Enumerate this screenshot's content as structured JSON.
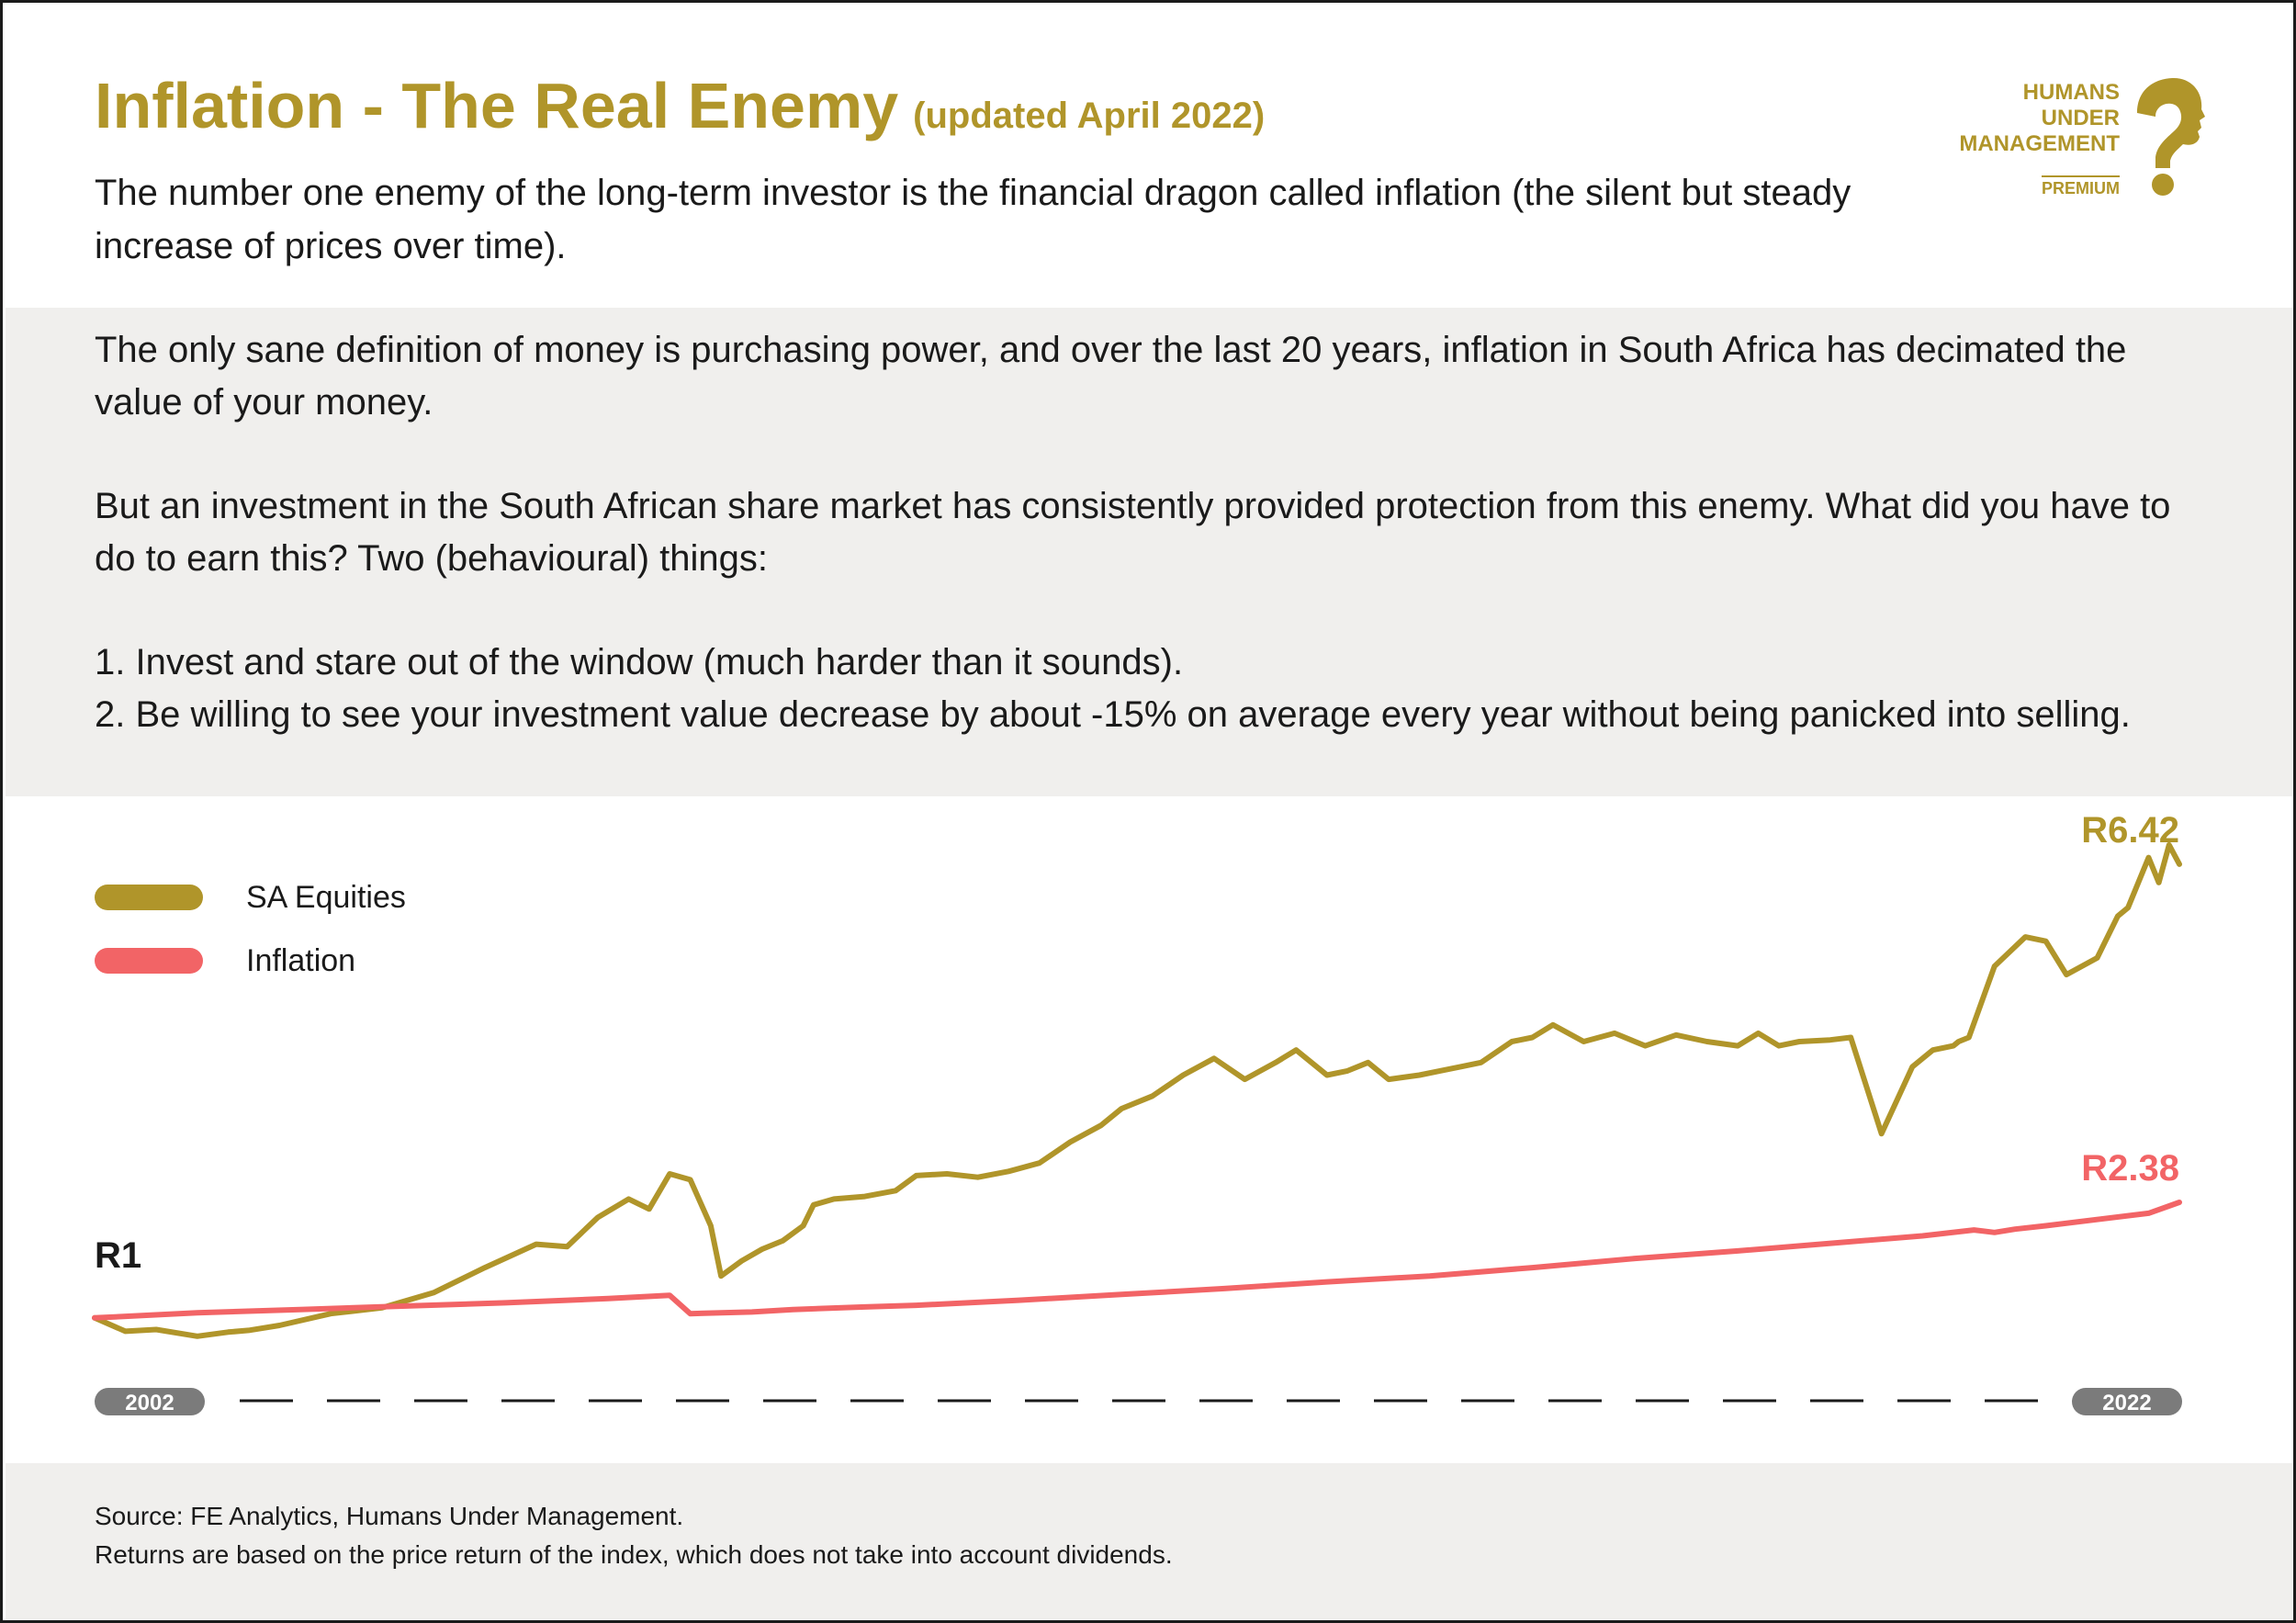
{
  "header": {
    "title": "Inflation - The Real Enemy",
    "subtitle": "(updated April 2022)",
    "intro": "The number one enemy of the long-term investor is the financial dragon called inflation (the silent but steady increase of prices over time)."
  },
  "logo": {
    "line1": "HUMANS",
    "line2": "UNDER",
    "line3": "MANAGEMENT",
    "badge": "PREMIUM",
    "icon": "question-head-icon"
  },
  "body": {
    "p1": "The only sane definition of money is purchasing power, and over the last 20 years, inflation in South Africa has decimated the value of your money.",
    "p2": "But an investment in the South African share market has consistently provided protection from this enemy. What did you have to do to earn this? Two (behavioural) things:",
    "item1": "1. Invest and stare out of the window (much harder than it sounds).",
    "item2": "2. Be willing to see your investment value decrease by about -15% on average every year without being panicked into selling."
  },
  "chart_data": {
    "type": "line",
    "x_start_label": "2002",
    "x_end_label": "2022",
    "xlim": [
      2002.0,
      2022.3
    ],
    "ylim": [
      0.8,
      7.0
    ],
    "start_label": "R1",
    "series": [
      {
        "name": "SA Equities",
        "color": "#b0952a",
        "end_label": "R6.42",
        "x": [
          2002.0,
          2002.3,
          2002.6,
          2003.0,
          2003.3,
          2003.5,
          2003.8,
          2004.3,
          2004.8,
          2005.3,
          2005.8,
          2006.3,
          2006.6,
          2006.9,
          2007.2,
          2007.4,
          2007.6,
          2007.8,
          2008.0,
          2008.1,
          2008.3,
          2008.5,
          2008.7,
          2008.9,
          2009.0,
          2009.2,
          2009.5,
          2009.8,
          2010.0,
          2010.3,
          2010.6,
          2010.9,
          2011.2,
          2011.5,
          2011.8,
          2012.0,
          2012.3,
          2012.6,
          2012.9,
          2013.2,
          2013.5,
          2013.7,
          2014.0,
          2014.2,
          2014.4,
          2014.6,
          2014.9,
          2015.1,
          2015.3,
          2015.5,
          2015.8,
          2016.0,
          2016.2,
          2016.5,
          2016.8,
          2017.1,
          2017.4,
          2017.7,
          2018.0,
          2018.2,
          2018.4,
          2018.6,
          2018.9,
          2019.1,
          2019.4,
          2019.7,
          2019.9,
          2020.1,
          2020.15,
          2020.25,
          2020.5,
          2020.8,
          2021.0,
          2021.2,
          2021.5,
          2021.7,
          2021.8,
          2022.0,
          2022.1,
          2022.2,
          2022.3
        ],
        "values": [
          1.0,
          0.84,
          0.86,
          0.78,
          0.83,
          0.85,
          0.91,
          1.05,
          1.12,
          1.3,
          1.6,
          1.88,
          1.85,
          2.2,
          2.42,
          2.3,
          2.72,
          2.65,
          2.1,
          1.5,
          1.68,
          1.82,
          1.92,
          2.1,
          2.35,
          2.42,
          2.45,
          2.52,
          2.7,
          2.72,
          2.68,
          2.75,
          2.85,
          3.1,
          3.3,
          3.5,
          3.65,
          3.9,
          4.1,
          3.85,
          4.05,
          4.2,
          3.9,
          3.95,
          4.05,
          3.85,
          3.9,
          3.95,
          4.0,
          4.05,
          4.3,
          4.35,
          4.5,
          4.3,
          4.4,
          4.25,
          4.38,
          4.3,
          4.25,
          4.4,
          4.25,
          4.3,
          4.32,
          4.35,
          3.2,
          4.0,
          4.2,
          4.25,
          4.3,
          4.35,
          5.2,
          5.55,
          5.5,
          5.1,
          5.3,
          5.8,
          5.9,
          6.5,
          6.2,
          6.65,
          6.42
        ]
      },
      {
        "name": "Inflation",
        "color": "#f26466",
        "end_label": "R2.38",
        "x": [
          2002.0,
          2003.0,
          2004.0,
          2005.0,
          2006.0,
          2007.0,
          2007.6,
          2007.8,
          2008.4,
          2008.8,
          2009.5,
          2010.0,
          2011.0,
          2012.0,
          2013.0,
          2014.0,
          2015.0,
          2016.0,
          2017.0,
          2018.0,
          2019.0,
          2019.5,
          2019.8,
          2020.3,
          2020.5,
          2020.7,
          2021.0,
          2022.0,
          2022.3
        ],
        "values": [
          1.0,
          1.06,
          1.1,
          1.14,
          1.18,
          1.23,
          1.27,
          1.05,
          1.07,
          1.1,
          1.13,
          1.15,
          1.21,
          1.28,
          1.35,
          1.43,
          1.5,
          1.6,
          1.71,
          1.8,
          1.9,
          1.95,
          1.98,
          2.05,
          2.02,
          2.06,
          2.1,
          2.25,
          2.38
        ]
      }
    ]
  },
  "footer": {
    "source": "Source: FE Analytics, Humans Under Management.",
    "note": "Returns are based on the price return of the index, which does not take into account dividends."
  }
}
